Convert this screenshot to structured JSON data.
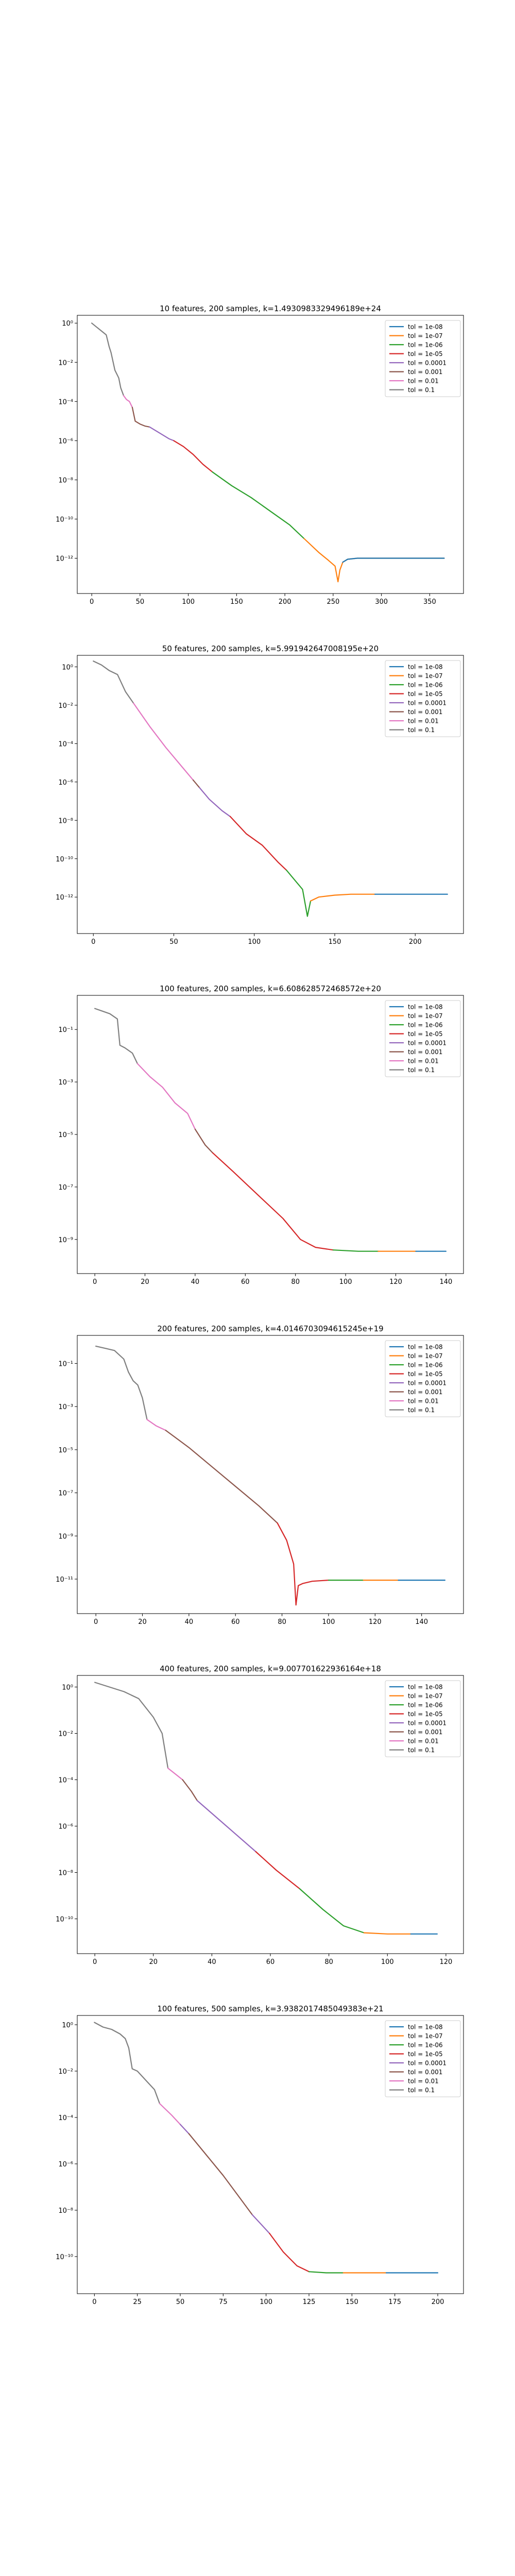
{
  "colors": {
    "tol_1e-08": "#1f77b4",
    "tol_1e-07": "#ff7f0e",
    "tol_1e-06": "#2ca02c",
    "tol_1e-05": "#d62728",
    "tol_0.0001": "#9467bd",
    "tol_0.001": "#8c564b",
    "tol_0.01": "#e377c2",
    "tol_0.1": "#7f7f7f"
  },
  "chart_data": [
    {
      "type": "line",
      "title": "10 features, 200 samples, k=1.4930983329496189e+24",
      "yscale": "log",
      "xlim": [
        -15,
        385
      ],
      "ylim_exp": [
        -13.8,
        0.4
      ],
      "xticks": [
        0,
        50,
        100,
        150,
        200,
        250,
        300,
        350
      ],
      "yticks_exp": [
        0,
        -2,
        -4,
        -6,
        -8,
        -10,
        -12
      ],
      "grid": false,
      "legend_position": "top-right",
      "legend": [
        "tol = 1e-08",
        "tol = 1e-07",
        "tol = 1e-06",
        "tol = 1e-05",
        "tol = 0.0001",
        "tol = 0.001",
        "tol = 0.01",
        "tol = 0.1"
      ],
      "segments": [
        {
          "series": "tol = 0.1",
          "color": "#7f7f7f",
          "x": [
            0,
            5,
            10,
            15,
            18,
            20,
            24,
            28,
            30,
            33
          ],
          "y_exp": [
            0,
            -0.2,
            -0.4,
            -0.6,
            -1.2,
            -1.5,
            -2.4,
            -2.8,
            -3.3,
            -3.7
          ]
        },
        {
          "series": "tol = 0.01",
          "color": "#e377c2",
          "x": [
            33,
            36,
            39,
            42
          ],
          "y_exp": [
            -3.7,
            -3.9,
            -4.0,
            -4.3
          ]
        },
        {
          "series": "tol = 0.001",
          "color": "#8c564b",
          "x": [
            42,
            45,
            50,
            55,
            60
          ],
          "y_exp": [
            -4.3,
            -5.0,
            -5.15,
            -5.25,
            -5.3
          ]
        },
        {
          "series": "tol = 0.0001",
          "color": "#9467bd",
          "x": [
            60,
            70,
            80,
            85
          ],
          "y_exp": [
            -5.3,
            -5.6,
            -5.9,
            -6.0
          ]
        },
        {
          "series": "tol = 1e-05",
          "color": "#d62728",
          "x": [
            85,
            95,
            105,
            115,
            125
          ],
          "y_exp": [
            -6.0,
            -6.3,
            -6.7,
            -7.2,
            -7.6
          ]
        },
        {
          "series": "tol = 1e-06",
          "color": "#2ca02c",
          "x": [
            125,
            145,
            165,
            185,
            205,
            220
          ],
          "y_exp": [
            -7.6,
            -8.3,
            -8.9,
            -9.6,
            -10.3,
            -11.0
          ]
        },
        {
          "series": "tol = 1e-07",
          "color": "#ff7f0e",
          "x": [
            220,
            235,
            245,
            252,
            255,
            257,
            260,
            265,
            275,
            290,
            310,
            330,
            350,
            365
          ],
          "y_exp": [
            -11.0,
            -11.7,
            -12.1,
            -12.4,
            -13.2,
            -12.6,
            -12.2,
            -12.05,
            -12.0,
            -12.0,
            -12.0,
            -12.0,
            -12.0,
            -12.0
          ]
        },
        {
          "series": "tol = 1e-08",
          "color": "#1f77b4",
          "x": [
            260,
            265,
            275,
            290,
            310,
            330,
            350,
            365
          ],
          "y_exp": [
            -12.2,
            -12.05,
            -12.0,
            -12.0,
            -12.0,
            -12.0,
            -12.0,
            -12.0
          ]
        }
      ]
    },
    {
      "type": "line",
      "title": "50 features, 200 samples, k=5.991942647008195e+20",
      "yscale": "log",
      "xlim": [
        -10,
        230
      ],
      "ylim_exp": [
        -13.9,
        0.6
      ],
      "xticks": [
        0,
        50,
        100,
        150,
        200
      ],
      "yticks_exp": [
        0,
        -2,
        -4,
        -6,
        -8,
        -10,
        -12
      ],
      "grid": false,
      "legend_position": "top-right",
      "legend": [
        "tol = 1e-08",
        "tol = 1e-07",
        "tol = 1e-06",
        "tol = 1e-05",
        "tol = 0.0001",
        "tol = 0.001",
        "tol = 0.01",
        "tol = 0.1"
      ],
      "segments": [
        {
          "series": "tol = 0.1",
          "color": "#7f7f7f",
          "x": [
            0,
            5,
            10,
            15,
            20,
            25
          ],
          "y_exp": [
            0.3,
            0.1,
            -0.2,
            -0.4,
            -1.3,
            -1.9
          ]
        },
        {
          "series": "tol = 0.01",
          "color": "#e377c2",
          "x": [
            25,
            35,
            45,
            55,
            62
          ],
          "y_exp": [
            -1.9,
            -3.1,
            -4.2,
            -5.2,
            -5.9
          ]
        },
        {
          "series": "tol = 0.001",
          "color": "#8c564b",
          "x": [
            62,
            66
          ],
          "y_exp": [
            -5.9,
            -6.3
          ]
        },
        {
          "series": "tol = 0.0001",
          "color": "#9467bd",
          "x": [
            66,
            72,
            80,
            85
          ],
          "y_exp": [
            -6.3,
            -6.9,
            -7.5,
            -7.8
          ]
        },
        {
          "series": "tol = 1e-05",
          "color": "#d62728",
          "x": [
            85,
            95,
            105,
            115,
            120
          ],
          "y_exp": [
            -7.8,
            -8.7,
            -9.3,
            -10.2,
            -10.6
          ]
        },
        {
          "series": "tol = 1e-06",
          "color": "#2ca02c",
          "x": [
            120,
            126,
            130,
            133,
            135
          ],
          "y_exp": [
            -10.6,
            -11.2,
            -11.6,
            -13.0,
            -12.2
          ]
        },
        {
          "series": "tol = 1e-07",
          "color": "#ff7f0e",
          "x": [
            135,
            140,
            150,
            160,
            175
          ],
          "y_exp": [
            -12.2,
            -12.0,
            -11.9,
            -11.85,
            -11.85
          ]
        },
        {
          "series": "tol = 1e-08",
          "color": "#1f77b4",
          "x": [
            175,
            190,
            205,
            220
          ],
          "y_exp": [
            -11.85,
            -11.85,
            -11.85,
            -11.85
          ]
        }
      ]
    },
    {
      "type": "line",
      "title": "100 features, 200 samples, k=6.608628572468572e+20",
      "yscale": "log",
      "xlim": [
        -7,
        147
      ],
      "ylim_exp": [
        -10.3,
        0.3
      ],
      "xticks": [
        0,
        20,
        40,
        60,
        80,
        100,
        120,
        140
      ],
      "yticks_exp": [
        -1,
        -3,
        -5,
        -7,
        -9
      ],
      "grid": false,
      "legend_position": "top-right",
      "legend": [
        "tol = 1e-08",
        "tol = 1e-07",
        "tol = 1e-06",
        "tol = 1e-05",
        "tol = 0.0001",
        "tol = 0.001",
        "tol = 0.01",
        "tol = 0.1"
      ],
      "segments": [
        {
          "series": "tol = 0.1",
          "color": "#7f7f7f",
          "x": [
            0,
            3,
            6,
            9,
            10,
            12,
            15,
            17
          ],
          "y_exp": [
            -0.2,
            -0.3,
            -0.4,
            -0.6,
            -1.6,
            -1.7,
            -1.9,
            -2.3
          ]
        },
        {
          "series": "tol = 0.01",
          "color": "#e377c2",
          "x": [
            17,
            22,
            27,
            32,
            37,
            40
          ],
          "y_exp": [
            -2.3,
            -2.8,
            -3.2,
            -3.8,
            -4.2,
            -4.8
          ]
        },
        {
          "series": "tol = 0.001",
          "color": "#8c564b",
          "x": [
            40,
            44,
            46,
            47
          ],
          "y_exp": [
            -4.8,
            -5.4,
            -5.6,
            -5.7
          ]
        },
        {
          "series": "tol = 1e-05",
          "color": "#d62728",
          "x": [
            47,
            55,
            65,
            75,
            82,
            88,
            95
          ],
          "y_exp": [
            -5.7,
            -6.4,
            -7.3,
            -8.2,
            -9.0,
            -9.3,
            -9.4
          ]
        },
        {
          "series": "tol = 1e-06",
          "color": "#2ca02c",
          "x": [
            95,
            105,
            113
          ],
          "y_exp": [
            -9.4,
            -9.45,
            -9.45
          ]
        },
        {
          "series": "tol = 1e-07",
          "color": "#ff7f0e",
          "x": [
            113,
            122,
            128
          ],
          "y_exp": [
            -9.45,
            -9.45,
            -9.45
          ]
        },
        {
          "series": "tol = 1e-08",
          "color": "#1f77b4",
          "x": [
            128,
            134,
            140
          ],
          "y_exp": [
            -9.45,
            -9.45,
            -9.45
          ]
        }
      ]
    },
    {
      "type": "line",
      "title": "200 features, 200 samples, k=4.0146703094615245e+19",
      "yscale": "log",
      "xlim": [
        -8,
        158
      ],
      "ylim_exp": [
        -12.6,
        0.3
      ],
      "xticks": [
        0,
        20,
        40,
        60,
        80,
        100,
        120,
        140
      ],
      "yticks_exp": [
        -1,
        -3,
        -5,
        -7,
        -9,
        -11
      ],
      "grid": false,
      "legend_position": "top-right",
      "legend": [
        "tol = 1e-08",
        "tol = 1e-07",
        "tol = 1e-06",
        "tol = 1e-05",
        "tol = 0.0001",
        "tol = 0.001",
        "tol = 0.01",
        "tol = 0.1"
      ],
      "segments": [
        {
          "series": "tol = 0.1",
          "color": "#7f7f7f",
          "x": [
            0,
            4,
            8,
            12,
            14,
            16,
            18,
            20,
            22
          ],
          "y_exp": [
            -0.2,
            -0.3,
            -0.4,
            -0.8,
            -1.4,
            -1.8,
            -2.0,
            -2.6,
            -3.6
          ]
        },
        {
          "series": "tol = 0.01",
          "color": "#e377c2",
          "x": [
            22,
            26,
            30
          ],
          "y_exp": [
            -3.6,
            -3.9,
            -4.1
          ]
        },
        {
          "series": "tol = 0.001",
          "color": "#8c564b",
          "x": [
            30,
            40,
            50,
            60,
            70,
            78
          ],
          "y_exp": [
            -4.1,
            -4.9,
            -5.8,
            -6.7,
            -7.6,
            -8.4
          ]
        },
        {
          "series": "tol = 1e-05",
          "color": "#d62728",
          "x": [
            78,
            82,
            85,
            86,
            87,
            89,
            93,
            100
          ],
          "y_exp": [
            -8.4,
            -9.2,
            -10.3,
            -12.2,
            -11.3,
            -11.2,
            -11.1,
            -11.05
          ]
        },
        {
          "series": "tol = 1e-06",
          "color": "#2ca02c",
          "x": [
            100,
            108,
            115
          ],
          "y_exp": [
            -11.05,
            -11.05,
            -11.05
          ]
        },
        {
          "series": "tol = 1e-07",
          "color": "#ff7f0e",
          "x": [
            115,
            123,
            130
          ],
          "y_exp": [
            -11.05,
            -11.05,
            -11.05
          ]
        },
        {
          "series": "tol = 1e-08",
          "color": "#1f77b4",
          "x": [
            130,
            140,
            150
          ],
          "y_exp": [
            -11.05,
            -11.05,
            -11.05
          ]
        }
      ]
    },
    {
      "type": "line",
      "title": "400 features, 200 samples, k=9.007701622936164e+18",
      "yscale": "log",
      "xlim": [
        -6,
        126
      ],
      "ylim_exp": [
        -11.5,
        0.5
      ],
      "xticks": [
        0,
        20,
        40,
        60,
        80,
        100,
        120
      ],
      "yticks_exp": [
        0,
        -2,
        -4,
        -6,
        -8,
        -10
      ],
      "grid": false,
      "legend_position": "top-right",
      "legend": [
        "tol = 1e-08",
        "tol = 1e-07",
        "tol = 1e-06",
        "tol = 1e-05",
        "tol = 0.0001",
        "tol = 0.001",
        "tol = 0.01",
        "tol = 0.1"
      ],
      "segments": [
        {
          "series": "tol = 0.1",
          "color": "#7f7f7f",
          "x": [
            0,
            5,
            10,
            15,
            20,
            23,
            25
          ],
          "y_exp": [
            0.2,
            0.0,
            -0.2,
            -0.5,
            -1.3,
            -2.0,
            -3.5
          ]
        },
        {
          "series": "tol = 0.01",
          "color": "#e377c2",
          "x": [
            25,
            28,
            30
          ],
          "y_exp": [
            -3.5,
            -3.8,
            -4.0
          ]
        },
        {
          "series": "tol = 0.001",
          "color": "#8c564b",
          "x": [
            30,
            33,
            35
          ],
          "y_exp": [
            -4.0,
            -4.5,
            -4.9
          ]
        },
        {
          "series": "tol = 0.0001",
          "color": "#9467bd",
          "x": [
            35,
            45,
            55
          ],
          "y_exp": [
            -4.9,
            -6.0,
            -7.1
          ]
        },
        {
          "series": "tol = 1e-05",
          "color": "#d62728",
          "x": [
            55,
            62,
            70
          ],
          "y_exp": [
            -7.1,
            -7.9,
            -8.7
          ]
        },
        {
          "series": "tol = 1e-06",
          "color": "#2ca02c",
          "x": [
            70,
            78,
            85,
            92
          ],
          "y_exp": [
            -8.7,
            -9.6,
            -10.3,
            -10.6
          ]
        },
        {
          "series": "tol = 1e-07",
          "color": "#ff7f0e",
          "x": [
            92,
            100,
            108
          ],
          "y_exp": [
            -10.6,
            -10.65,
            -10.65
          ]
        },
        {
          "series": "tol = 1e-08",
          "color": "#1f77b4",
          "x": [
            108,
            113,
            117
          ],
          "y_exp": [
            -10.65,
            -10.65,
            -10.65
          ]
        }
      ]
    },
    {
      "type": "line",
      "title": "100 features, 500 samples, k=3.9382017485049383e+21",
      "yscale": "log",
      "xlim": [
        -10,
        215
      ],
      "ylim_exp": [
        -11.6,
        0.4
      ],
      "xticks": [
        0,
        25,
        50,
        75,
        100,
        125,
        150,
        175,
        200
      ],
      "yticks_exp": [
        0,
        -2,
        -4,
        -6,
        -8,
        -10
      ],
      "grid": false,
      "legend_position": "top-right",
      "legend": [
        "tol = 1e-08",
        "tol = 1e-07",
        "tol = 1e-06",
        "tol = 1e-05",
        "tol = 0.0001",
        "tol = 0.001",
        "tol = 0.01",
        "tol = 0.1"
      ],
      "segments": [
        {
          "series": "tol = 0.1",
          "color": "#7f7f7f",
          "x": [
            0,
            5,
            10,
            15,
            18,
            20,
            22,
            25,
            30,
            35,
            38
          ],
          "y_exp": [
            0.1,
            -0.1,
            -0.2,
            -0.4,
            -0.6,
            -1.0,
            -1.9,
            -2.0,
            -2.4,
            -2.8,
            -3.4
          ]
        },
        {
          "series": "tol = 0.01",
          "color": "#e377c2",
          "x": [
            38,
            45,
            50
          ],
          "y_exp": [
            -3.4,
            -3.9,
            -4.3
          ]
        },
        {
          "series": "tol = 0.0001",
          "color": "#9467bd",
          "x": [
            50,
            55
          ],
          "y_exp": [
            -4.3,
            -4.7
          ]
        },
        {
          "series": "tol = 0.001",
          "color": "#8c564b",
          "x": [
            55,
            65,
            75,
            85,
            92
          ],
          "y_exp": [
            -4.7,
            -5.6,
            -6.5,
            -7.5,
            -8.2
          ]
        },
        {
          "series": "tol = 0.0001",
          "color": "#9467bd",
          "x": [
            92,
            97,
            102
          ],
          "y_exp": [
            -8.2,
            -8.6,
            -9.0
          ]
        },
        {
          "series": "tol = 1e-05",
          "color": "#d62728",
          "x": [
            102,
            110,
            118,
            125
          ],
          "y_exp": [
            -9.0,
            -9.8,
            -10.4,
            -10.65
          ]
        },
        {
          "series": "tol = 1e-06",
          "color": "#2ca02c",
          "x": [
            125,
            135,
            145
          ],
          "y_exp": [
            -10.65,
            -10.7,
            -10.7
          ]
        },
        {
          "series": "tol = 1e-07",
          "color": "#ff7f0e",
          "x": [
            145,
            158,
            170
          ],
          "y_exp": [
            -10.7,
            -10.7,
            -10.7
          ]
        },
        {
          "series": "tol = 1e-08",
          "color": "#1f77b4",
          "x": [
            170,
            185,
            200
          ],
          "y_exp": [
            -10.7,
            -10.7,
            -10.7
          ]
        }
      ]
    }
  ]
}
